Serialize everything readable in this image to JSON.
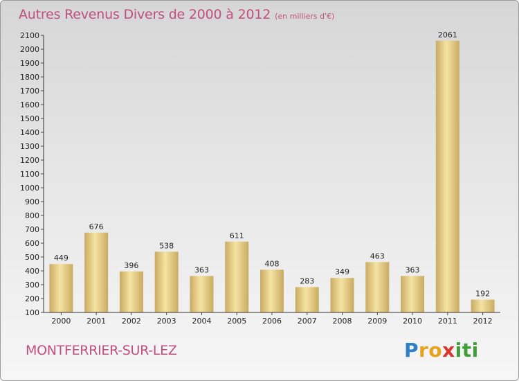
{
  "header": {
    "title": "Autres Revenus Divers de 2000 à 2012",
    "subtitle": "(en milliers d'€)"
  },
  "footer": {
    "commune": "MONTFERRIER-SUR-LEZ",
    "brand": {
      "letters": [
        "P",
        "r",
        "o",
        "x",
        "i",
        "t",
        "i"
      ],
      "colors": [
        "#2e7fc4",
        "#e8a21c",
        "#e8a21c",
        "#d9362d",
        "#3f9d3a",
        "#3f9d3a",
        "#3f9d3a"
      ]
    }
  },
  "colors": {
    "bar_light": "#f6e3a2",
    "bar_dark": "#c9ab62",
    "title": "#c0507a"
  },
  "chart_data": {
    "type": "bar",
    "title": "Autres Revenus Divers de 2000 à 2012",
    "subtitle": "(en milliers d'€)",
    "categories": [
      "2000",
      "2001",
      "2002",
      "2003",
      "2004",
      "2005",
      "2006",
      "2007",
      "2008",
      "2009",
      "2010",
      "2011",
      "2012"
    ],
    "values": [
      449,
      676,
      396,
      538,
      363,
      611,
      408,
      283,
      349,
      463,
      363,
      2061,
      192
    ],
    "ylim": [
      100,
      2100
    ],
    "yticks": [
      100,
      200,
      300,
      400,
      500,
      600,
      700,
      800,
      900,
      1000,
      1100,
      1200,
      1300,
      1400,
      1500,
      1600,
      1700,
      1800,
      1900,
      2000,
      2100
    ],
    "grid": false,
    "legend": "none"
  }
}
